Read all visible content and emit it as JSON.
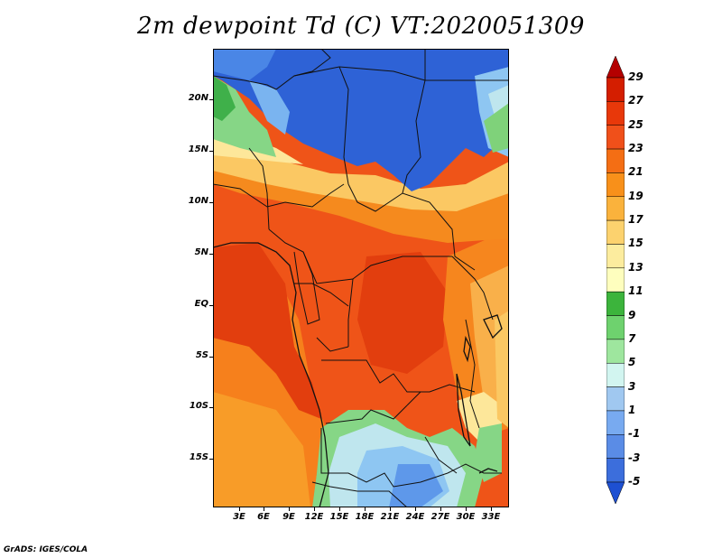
{
  "title": "2m dewpoint Td (C) VT:2020051309",
  "credit": "GrADS: IGES/COLA",
  "y_axis_labels": [
    "20N",
    "15N",
    "10N",
    "5N",
    "EQ",
    "5S",
    "10S",
    "15S"
  ],
  "x_axis_labels": [
    "3E",
    "6E",
    "9E",
    "12E",
    "15E",
    "18E",
    "21E",
    "24E",
    "27E",
    "30E",
    "33E"
  ],
  "colorbar": {
    "labels": [
      "29",
      "27",
      "25",
      "23",
      "21",
      "19",
      "17",
      "15",
      "13",
      "11",
      "9",
      "7",
      "5",
      "3",
      "1",
      "-1",
      "-3",
      "-5"
    ],
    "colors": [
      "#b40000",
      "#d41e00",
      "#e8380a",
      "#f0501a",
      "#f46e14",
      "#f8901a",
      "#fab23c",
      "#fcd26e",
      "#fcec9e",
      "#fefebe",
      "#3cb43c",
      "#6ed26e",
      "#9ee69e",
      "#d2f5f0",
      "#a0c8f0",
      "#78aaf0",
      "#5a8ce6",
      "#3c6edc",
      "#1e50d2"
    ]
  },
  "legend_colors": {
    "dry": "#2c60d4",
    "moist": "#e8420e"
  }
}
